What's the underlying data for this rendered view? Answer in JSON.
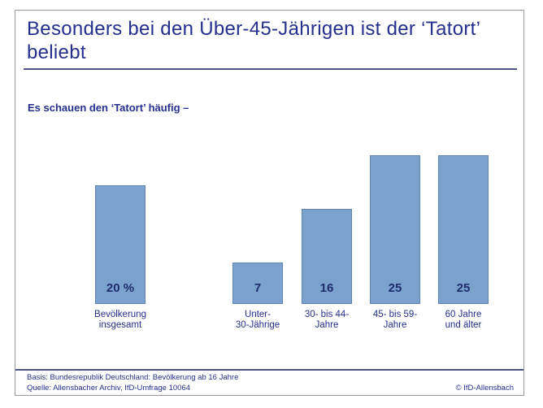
{
  "page": {
    "title": "Besonders bei den Über-45-Jährigen ist der ‘Tatort’ beliebt",
    "subtitle": "Es schauen den ‘Tatort’ häufig –"
  },
  "chart_data": {
    "type": "bar",
    "title": "Besonders bei den Über-45-Jährigen ist der ‘Tatort’ beliebt",
    "subtitle": "Es schauen den ‘Tatort’ häufig –",
    "categories": [
      "Bevölkerung\ninsgesamt",
      "Unter-\n30-Jährige",
      "30- bis 44-\nJahre",
      "45- bis 59-\nJahre",
      "60 Jahre\nund älter"
    ],
    "values": [
      20,
      7,
      16,
      25,
      25
    ],
    "value_labels": [
      "20 %",
      "7",
      "16",
      "25",
      "25"
    ],
    "unit": "%",
    "xlabel": "",
    "ylabel": "",
    "ylim": [
      0,
      27
    ],
    "grid": false,
    "legend": false,
    "bar_color": "#7ba1cd",
    "bar_border_color": "#5f86b6",
    "label_color": "#262f8e",
    "value_label_color": "#1f2d6f"
  },
  "footer": {
    "basis": "Basis: Bundesrepublik Deutschland: Bevölkerung ab 16 Jahre",
    "quelle": "Quelle: Allensbacher Archiv, IfD-Umfrage 10064",
    "copyright": "© IfD-Allensbach"
  },
  "colors": {
    "heading_navy": "#262f8e",
    "rule_navy": "#4e5484",
    "frame_gray": "#9a9a9a",
    "background": "#ffffff"
  }
}
